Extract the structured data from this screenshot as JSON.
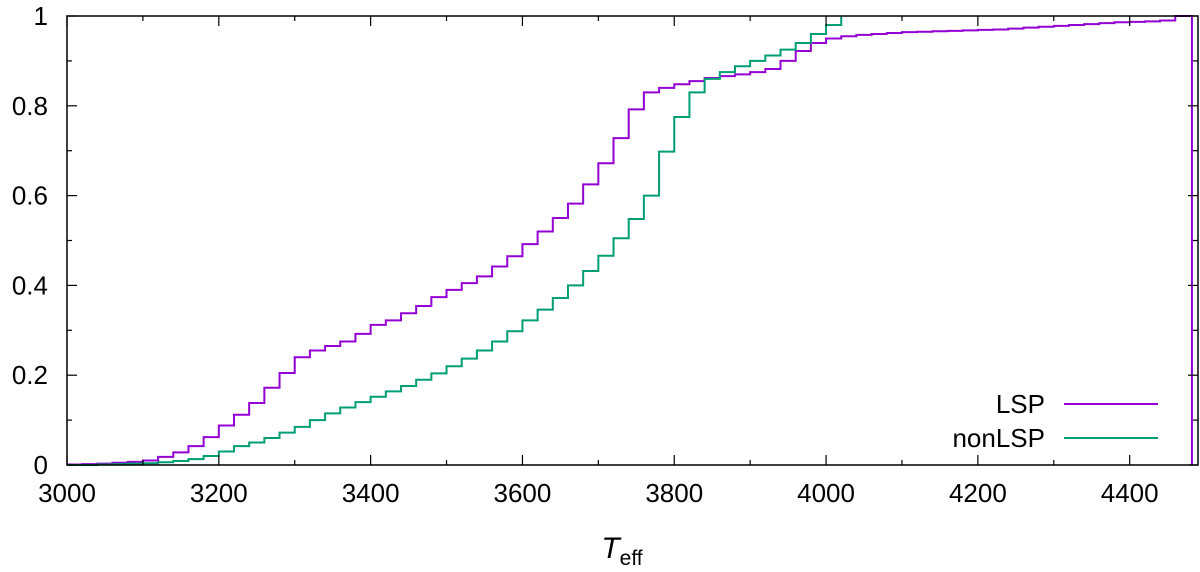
{
  "chart_data": {
    "type": "line",
    "step": true,
    "title": "",
    "xlabel": "T",
    "xlabel_subscript": "eff",
    "ylabel": "",
    "xlim": [
      3000,
      4490
    ],
    "ylim": [
      0,
      1
    ],
    "xticks": [
      "3000",
      "3200",
      "3400",
      "3600",
      "3800",
      "4000",
      "4200",
      "4400"
    ],
    "yticks": [
      "0",
      "0.2",
      "0.4",
      "0.6",
      "0.8",
      "1"
    ],
    "grid": false,
    "legend_position": "bottom-right",
    "series": [
      {
        "name": "LSP",
        "color": "#9400d3",
        "x": [
          3000,
          3020,
          3040,
          3060,
          3080,
          3100,
          3120,
          3140,
          3160,
          3180,
          3200,
          3220,
          3240,
          3260,
          3280,
          3300,
          3320,
          3340,
          3360,
          3380,
          3400,
          3420,
          3440,
          3460,
          3480,
          3500,
          3520,
          3540,
          3560,
          3580,
          3600,
          3620,
          3640,
          3660,
          3680,
          3700,
          3720,
          3740,
          3760,
          3780,
          3800,
          3820,
          3840,
          3860,
          3880,
          3900,
          3920,
          3940,
          3960,
          3980,
          4000,
          4020,
          4040,
          4060,
          4080,
          4100,
          4120,
          4140,
          4160,
          4180,
          4200,
          4220,
          4240,
          4260,
          4280,
          4300,
          4320,
          4340,
          4360,
          4380,
          4400,
          4420,
          4440,
          4460,
          4480,
          4482
        ],
        "y": [
          0.001,
          0.002,
          0.003,
          0.005,
          0.007,
          0.01,
          0.018,
          0.028,
          0.042,
          0.062,
          0.088,
          0.112,
          0.138,
          0.172,
          0.205,
          0.24,
          0.255,
          0.265,
          0.275,
          0.292,
          0.312,
          0.322,
          0.338,
          0.354,
          0.374,
          0.39,
          0.405,
          0.42,
          0.442,
          0.465,
          0.492,
          0.52,
          0.55,
          0.582,
          0.625,
          0.672,
          0.728,
          0.792,
          0.83,
          0.84,
          0.848,
          0.855,
          0.862,
          0.866,
          0.87,
          0.875,
          0.882,
          0.9,
          0.922,
          0.94,
          0.95,
          0.955,
          0.958,
          0.96,
          0.962,
          0.964,
          0.965,
          0.966,
          0.967,
          0.968,
          0.969,
          0.97,
          0.972,
          0.974,
          0.976,
          0.978,
          0.98,
          0.982,
          0.984,
          0.986,
          0.987,
          0.988,
          0.99,
          1.0,
          1.0,
          0.0
        ]
      },
      {
        "name": "nonLSP",
        "color": "#009e73",
        "x": [
          3000,
          3020,
          3040,
          3060,
          3080,
          3100,
          3120,
          3140,
          3160,
          3180,
          3200,
          3220,
          3240,
          3260,
          3280,
          3300,
          3320,
          3340,
          3360,
          3380,
          3400,
          3420,
          3440,
          3460,
          3480,
          3500,
          3520,
          3540,
          3560,
          3580,
          3600,
          3620,
          3640,
          3660,
          3680,
          3700,
          3720,
          3740,
          3760,
          3780,
          3800,
          3820,
          3840,
          3860,
          3880,
          3900,
          3920,
          3940,
          3960,
          3980,
          4000,
          4020
        ],
        "y": [
          0.0,
          0.0,
          0.001,
          0.002,
          0.003,
          0.004,
          0.006,
          0.009,
          0.013,
          0.02,
          0.03,
          0.042,
          0.05,
          0.06,
          0.072,
          0.085,
          0.1,
          0.115,
          0.128,
          0.14,
          0.152,
          0.164,
          0.176,
          0.19,
          0.204,
          0.22,
          0.237,
          0.255,
          0.275,
          0.298,
          0.322,
          0.346,
          0.372,
          0.4,
          0.432,
          0.466,
          0.505,
          0.548,
          0.6,
          0.698,
          0.775,
          0.83,
          0.86,
          0.875,
          0.888,
          0.9,
          0.912,
          0.925,
          0.94,
          0.96,
          0.98,
          1.0
        ]
      }
    ]
  }
}
